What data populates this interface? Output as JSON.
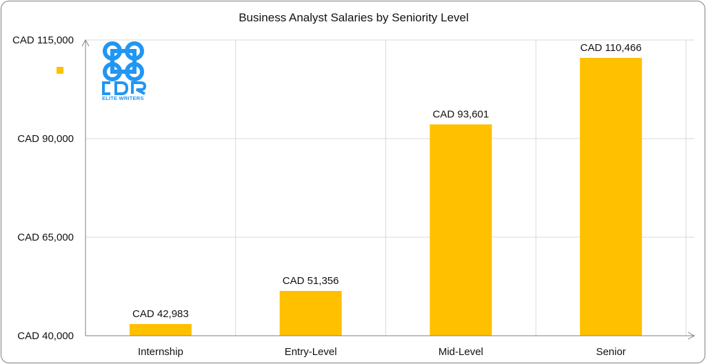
{
  "chart_data": {
    "type": "bar",
    "title": "Business Analyst Salaries by Seniority Level",
    "categories": [
      "Internship",
      "Entry-Level",
      "Mid-Level",
      "Senior"
    ],
    "values": [
      42983,
      51356,
      93601,
      110466
    ],
    "data_labels": [
      "CAD 42,983",
      "CAD 51,356",
      "CAD 93,601",
      "CAD 110,466"
    ],
    "ylim": [
      40000,
      115000
    ],
    "yticks": [
      40000,
      65000,
      90000,
      115000
    ],
    "ytick_labels": [
      "CAD 40,000",
      "CAD 65,000",
      "CAD 90,000",
      "CAD 115,000"
    ],
    "xlabel": "",
    "ylabel": "",
    "grid": true,
    "legend": "top-left",
    "bar_color": "#ffc000",
    "grid_color": "#d9d9d9",
    "axis_color": "#7f7f7f"
  },
  "logo": {
    "text": "CDR",
    "subtext": "ELITE WRITERS",
    "color": "#2196f3"
  }
}
